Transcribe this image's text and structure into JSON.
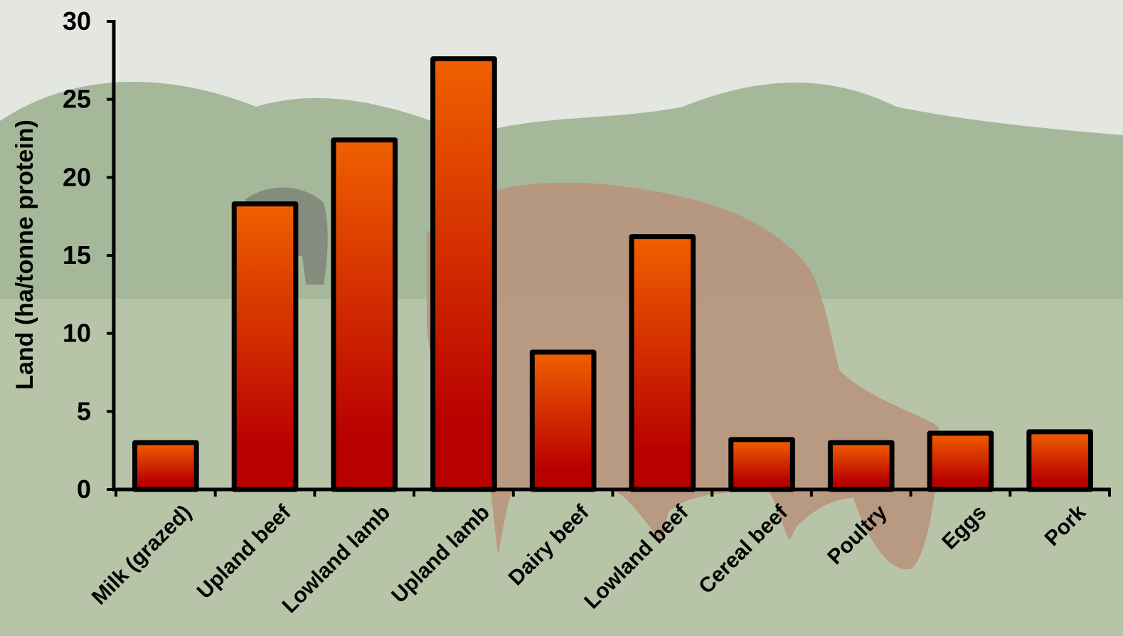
{
  "chart_data": {
    "type": "bar",
    "title": "",
    "xlabel": "",
    "ylabel": "Land (ha/tonne protein)",
    "ylim": [
      0,
      30
    ],
    "yticks": [
      0,
      5,
      10,
      15,
      20,
      25,
      30
    ],
    "grid": false,
    "legend": "none",
    "categories": [
      "Milk (grazed)",
      "Upland beef",
      "Lowland lamb",
      "Upland lamb",
      "Dairy beef",
      "Lowland beef",
      "Cereal beef",
      "Poultry",
      "Eggs",
      "Pork"
    ],
    "values": [
      3.0,
      18.3,
      22.4,
      27.6,
      8.8,
      16.2,
      3.2,
      3.0,
      3.6,
      3.7
    ],
    "bar_color_top": "#f06000",
    "bar_color_bottom": "#b80000",
    "bar_outline": "#000000"
  },
  "background": {
    "description_icon": "grazing-cow-photo",
    "sky": "#e4e6e1",
    "bushes": "#9fb393",
    "grass": "#b5c2a5",
    "cow": "#b7927a"
  }
}
